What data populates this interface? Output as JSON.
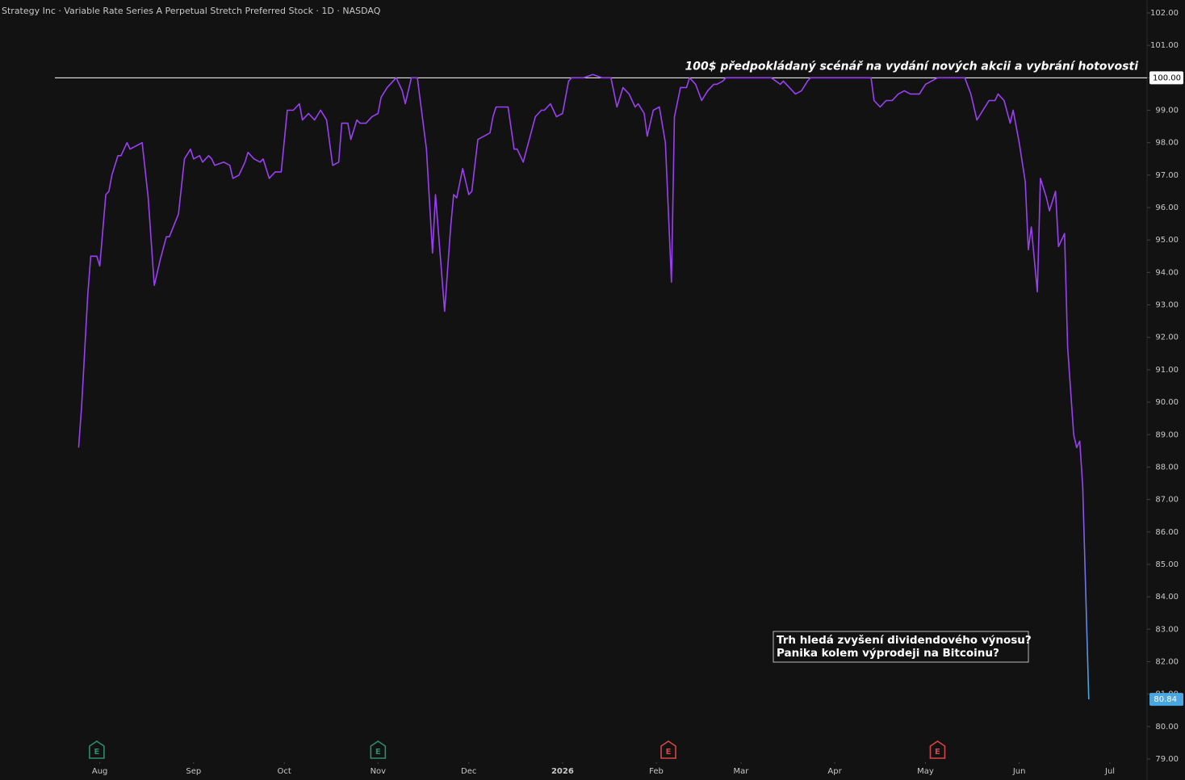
{
  "chart_data": {
    "type": "line",
    "title": "Strategy Inc · Variable Rate Series A Perpetual Stretch Preferred Stock · 1D · NASDAQ",
    "color": "#9a3ff2",
    "gradient_end_color": "#4aa6e0",
    "x": [
      -7,
      -6,
      -4,
      -3,
      -1,
      0,
      2,
      3,
      4,
      6,
      7,
      9,
      10,
      12,
      14,
      16,
      18,
      20,
      22,
      23,
      26,
      28,
      30,
      31,
      33,
      34,
      36,
      37,
      38,
      41,
      43,
      44,
      46,
      48,
      49,
      51,
      53,
      54,
      56,
      58,
      60,
      62,
      64,
      66,
      67,
      69,
      71,
      73,
      75,
      77,
      79,
      80,
      82,
      83,
      85,
      86,
      88,
      90,
      92,
      93,
      95,
      98,
      100,
      101,
      103,
      105,
      108,
      110,
      111,
      114,
      116,
      117,
      118,
      120,
      122,
      123,
      125,
      127,
      129,
      130,
      131,
      133,
      135,
      137,
      138,
      140,
      142,
      144,
      146,
      147,
      149,
      151,
      153,
      155,
      156,
      160,
      163,
      166,
      169,
      171,
      173,
      175,
      177,
      178,
      180,
      181,
      183,
      185,
      187,
      189,
      190,
      192,
      194,
      195,
      197,
      199,
      201,
      203,
      204,
      206,
      207,
      209,
      213,
      216,
      219,
      222,
      225,
      226,
      228,
      230,
      232,
      234,
      235,
      239,
      242,
      246,
      249,
      253,
      255,
      256,
      258,
      260,
      262,
      264,
      266,
      268,
      269,
      271,
      273,
      275,
      277,
      279,
      281,
      282,
      284,
      286,
      288,
      290,
      292,
      294,
      296,
      297,
      299,
      301,
      302,
      304,
      306,
      307,
      308,
      310,
      311,
      313,
      314,
      316,
      317,
      319,
      320,
      322,
      323,
      324,
      325,
      327
    ],
    "values": [
      88.6,
      89.9,
      93.3,
      94.5,
      94.5,
      94.2,
      96.4,
      96.5,
      97.0,
      97.6,
      97.6,
      98.0,
      97.8,
      97.9,
      98.0,
      96.3,
      93.6,
      94.4,
      95.1,
      95.1,
      95.8,
      97.5,
      97.8,
      97.5,
      97.6,
      97.4,
      97.6,
      97.5,
      97.3,
      97.4,
      97.3,
      96.9,
      97.0,
      97.4,
      97.7,
      97.5,
      97.4,
      97.5,
      96.9,
      97.1,
      97.1,
      99.0,
      99.0,
      99.2,
      98.7,
      98.9,
      98.7,
      99.0,
      98.7,
      97.3,
      97.4,
      98.6,
      98.6,
      98.1,
      98.7,
      98.6,
      98.6,
      98.8,
      98.9,
      99.4,
      99.7,
      100.0,
      99.6,
      99.2,
      100.0,
      100.0,
      97.8,
      94.6,
      96.4,
      92.8,
      95.4,
      96.4,
      96.3,
      97.2,
      96.4,
      96.5,
      98.1,
      98.2,
      98.3,
      98.8,
      99.1,
      99.1,
      99.1,
      97.8,
      97.8,
      97.4,
      98.1,
      98.8,
      99.0,
      99.0,
      99.2,
      98.8,
      98.9,
      99.9,
      100.0,
      100.0,
      100.1,
      100.0,
      100.0,
      99.1,
      99.7,
      99.5,
      99.1,
      99.2,
      98.9,
      98.2,
      99.0,
      99.1,
      98.0,
      93.7,
      98.8,
      99.7,
      99.7,
      100.0,
      99.8,
      99.3,
      99.6,
      99.8,
      99.8,
      99.9,
      100.0,
      100.0,
      100.0,
      100.0,
      100.0,
      100.0,
      99.8,
      99.9,
      99.7,
      99.5,
      99.6,
      99.9,
      100.0,
      100.0,
      100.0,
      100.0,
      100.0,
      100.0,
      100.0,
      99.3,
      99.1,
      99.3,
      99.3,
      99.5,
      99.6,
      99.5,
      99.5,
      99.5,
      99.8,
      99.9,
      100.0,
      100.0,
      100.0,
      100.0,
      100.0,
      100.0,
      99.5,
      98.7,
      99.0,
      99.3,
      99.3,
      99.5,
      99.3,
      98.6,
      99.0,
      98.0,
      96.8,
      94.7,
      95.4,
      93.4,
      96.9,
      96.3,
      95.9,
      96.5,
      94.8,
      95.2,
      91.7,
      89.0,
      88.6,
      88.8,
      87.4,
      80.84
    ],
    "xlim": [
      -33,
      346
    ],
    "xticks": [
      {
        "value": 0,
        "label": "Aug"
      },
      {
        "value": 31,
        "label": "Sep"
      },
      {
        "value": 61,
        "label": "Oct"
      },
      {
        "value": 92,
        "label": "Nov"
      },
      {
        "value": 122,
        "label": "Dec"
      },
      {
        "value": 153,
        "label": "2026"
      },
      {
        "value": 184,
        "label": "Feb"
      },
      {
        "value": 212,
        "label": "Mar"
      },
      {
        "value": 243,
        "label": "Apr"
      },
      {
        "value": 273,
        "label": "May"
      },
      {
        "value": 304,
        "label": "Jun"
      },
      {
        "value": 334,
        "label": "Jul"
      }
    ],
    "ylim": [
      79,
      102
    ],
    "yticks": [
      {
        "value": 79,
        "label": "79.00"
      },
      {
        "value": 80,
        "label": "80.00"
      },
      {
        "value": 81,
        "label": "81.00"
      },
      {
        "value": 82,
        "label": "82.00"
      },
      {
        "value": 83,
        "label": "83.00"
      },
      {
        "value": 84,
        "label": "84.00"
      },
      {
        "value": 85,
        "label": "85.00"
      },
      {
        "value": 86,
        "label": "86.00"
      },
      {
        "value": 87,
        "label": "87.00"
      },
      {
        "value": 88,
        "label": "88.00"
      },
      {
        "value": 89,
        "label": "89.00"
      },
      {
        "value": 90,
        "label": "90.00"
      },
      {
        "value": 91,
        "label": "91.00"
      },
      {
        "value": 92,
        "label": "92.00"
      },
      {
        "value": 93,
        "label": "93.00"
      },
      {
        "value": 94,
        "label": "94.00"
      },
      {
        "value": 95,
        "label": "95.00"
      },
      {
        "value": 96,
        "label": "96.00"
      },
      {
        "value": 97,
        "label": "97.00"
      },
      {
        "value": 98,
        "label": "98.00"
      },
      {
        "value": 99,
        "label": "99.00"
      },
      {
        "value": 100,
        "label": "100.00"
      },
      {
        "value": 101,
        "label": "101.00"
      },
      {
        "value": 102,
        "label": "102.00"
      }
    ],
    "hline": {
      "value": 100,
      "label": "100$ předpokládaný scénář na vydání nových akcii a vybrání hotovosti"
    },
    "note": [
      "Trh hledá zvyšení dividendového výnosu?",
      "Panika kolem výprodeji na Bitcoinu?"
    ],
    "events": [
      {
        "x": -1,
        "label": "E",
        "color": "#2e8b6e"
      },
      {
        "x": 92,
        "label": "E",
        "color": "#2e8b6e"
      },
      {
        "x": 188,
        "label": "E",
        "color": "#d64545"
      },
      {
        "x": 277,
        "label": "E",
        "color": "#d64545"
      }
    ]
  }
}
